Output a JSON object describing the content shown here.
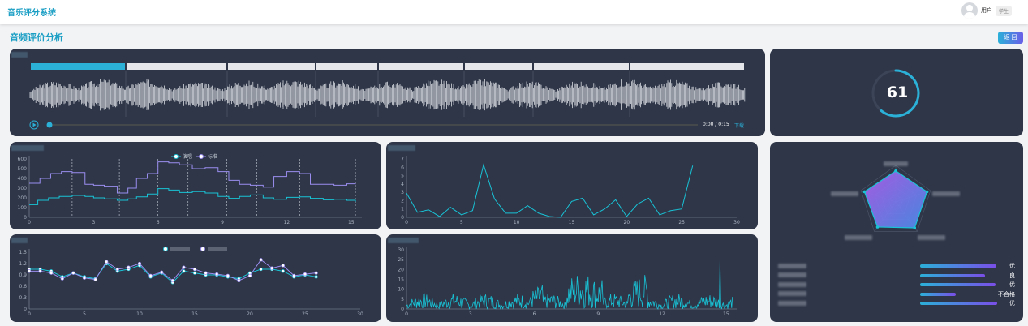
{
  "app": {
    "title": "音乐评分系统"
  },
  "user": {
    "name": "用户",
    "role": "学生"
  },
  "page": {
    "title": "音频评价分析",
    "back_label": "返 回"
  },
  "player": {
    "time": "0:00 / 0:15",
    "download_label": "下载",
    "segments": 8,
    "active_segment": 0
  },
  "score": {
    "value": "61",
    "fraction": 0.61,
    "color": "#2bb0d8"
  },
  "ratings": [
    {
      "label": "优",
      "fraction": 0.96
    },
    {
      "label": "良",
      "fraction": 0.82
    },
    {
      "label": "优",
      "fraction": 0.95
    },
    {
      "label": "不合格",
      "fraction": 0.45
    },
    {
      "label": "优",
      "fraction": 0.97
    }
  ],
  "colors": {
    "card": "#2e3648",
    "cyan": "#19c3d6",
    "purple": "#9b8ef0",
    "accent": "#2bb0d8"
  },
  "chart_data": [
    {
      "type": "line",
      "legend": [
        "演唱",
        "标准"
      ],
      "ylim": [
        0,
        600
      ],
      "yticks": [
        0,
        100,
        200,
        300,
        400,
        500,
        600
      ],
      "xlim": [
        0,
        15.5
      ],
      "xticks": [
        0,
        3,
        6,
        9,
        12,
        15
      ],
      "series": [
        {
          "name": "演唱",
          "x": [
            0,
            0.4,
            0.9,
            1.4,
            2.0,
            2.6,
            3.0,
            3.5,
            4.1,
            4.6,
            5.0,
            5.5,
            6.0,
            6.5,
            7.0,
            7.6,
            8.2,
            8.8,
            9.3,
            9.8,
            10.3,
            10.9,
            11.4,
            12.0,
            12.6,
            13.1,
            13.7,
            14.2,
            14.8,
            15.2
          ],
          "values": [
            130,
            175,
            200,
            215,
            225,
            215,
            200,
            190,
            175,
            190,
            210,
            240,
            295,
            280,
            255,
            265,
            250,
            215,
            195,
            215,
            230,
            200,
            185,
            205,
            210,
            195,
            180,
            185,
            175,
            160
          ]
        },
        {
          "name": "标准",
          "x": [
            0,
            0.5,
            1.0,
            1.5,
            2.0,
            2.6,
            3.0,
            3.5,
            4.1,
            4.6,
            5.0,
            5.5,
            6.0,
            6.5,
            7.0,
            7.6,
            8.2,
            8.8,
            9.3,
            9.8,
            10.3,
            10.9,
            11.4,
            12.0,
            12.6,
            13.1,
            13.7,
            14.2,
            14.8,
            15.2
          ],
          "values": [
            350,
            400,
            450,
            470,
            460,
            340,
            330,
            320,
            250,
            300,
            400,
            450,
            570,
            560,
            540,
            500,
            510,
            470,
            380,
            340,
            330,
            310,
            420,
            470,
            450,
            340,
            340,
            330,
            345,
            350
          ]
        }
      ],
      "dashed_x": [
        2.0,
        4.2,
        6.0,
        7.4,
        9.2,
        10.6,
        12.6,
        15.2
      ]
    },
    {
      "type": "line",
      "ylim": [
        0,
        7
      ],
      "yticks": [
        0,
        1,
        2,
        3,
        4,
        5,
        6,
        7
      ],
      "xlim": [
        0,
        30
      ],
      "xticks": [
        0,
        5,
        10,
        15,
        20,
        25,
        30
      ],
      "series": [
        {
          "x": [
            0,
            1,
            2,
            3,
            4,
            5,
            6,
            7,
            8,
            9,
            10,
            11,
            12,
            13,
            14,
            15,
            16,
            17,
            18,
            19,
            20,
            21,
            22,
            23,
            24,
            25,
            26
          ],
          "values": [
            2.9,
            0.6,
            0.9,
            0.1,
            1.2,
            0.3,
            0.8,
            6.3,
            2.2,
            0.5,
            0.5,
            1.4,
            0.5,
            0.1,
            0.0,
            1.9,
            2.3,
            0.3,
            1.0,
            2.1,
            0.1,
            1.6,
            2.3,
            0.3,
            0.8,
            1.0,
            6.2
          ]
        }
      ]
    },
    {
      "type": "line",
      "ylim": [
        0,
        1.5
      ],
      "yticks": [
        0,
        0.3,
        0.6,
        0.9,
        1.2,
        1.5
      ],
      "xlim": [
        0,
        30
      ],
      "xticks": [
        0,
        5,
        10,
        15,
        20,
        25,
        30
      ],
      "series": [
        {
          "x": [
            0,
            1,
            2,
            3,
            4,
            5,
            6,
            7,
            8,
            9,
            10,
            11,
            12,
            13,
            14,
            15,
            16,
            17,
            18,
            19,
            20,
            21,
            22,
            23,
            24,
            25,
            26
          ],
          "values": [
            1.05,
            1.05,
            1.0,
            0.85,
            0.95,
            0.85,
            0.8,
            1.2,
            1.0,
            1.05,
            1.15,
            0.85,
            0.95,
            0.7,
            1.0,
            0.95,
            0.9,
            0.9,
            0.85,
            0.8,
            0.95,
            1.05,
            1.05,
            1.0,
            0.85,
            0.9,
            0.85
          ]
        },
        {
          "x": [
            0,
            1,
            2,
            3,
            4,
            5,
            6,
            7,
            8,
            9,
            10,
            11,
            12,
            13,
            14,
            15,
            16,
            17,
            18,
            19,
            20,
            21,
            22,
            23,
            24,
            25,
            26
          ],
          "values": [
            1.0,
            1.0,
            0.95,
            0.8,
            0.95,
            0.82,
            0.78,
            1.25,
            1.05,
            1.1,
            1.2,
            0.88,
            0.97,
            0.75,
            1.1,
            1.05,
            0.95,
            0.92,
            0.88,
            0.75,
            0.88,
            1.3,
            1.08,
            1.15,
            0.88,
            0.92,
            0.95
          ]
        }
      ]
    },
    {
      "type": "line",
      "ylim": [
        0,
        30
      ],
      "yticks": [
        0,
        5,
        10,
        15,
        20,
        25,
        30
      ],
      "xlim": [
        0,
        15.5
      ],
      "xticks": [
        0,
        3,
        6,
        9,
        12,
        15
      ]
    },
    {
      "type": "radar",
      "axes": 5,
      "max": 1,
      "series": [
        {
          "values": [
            0.85,
            0.9,
            0.88,
            0.85,
            0.9
          ]
        }
      ]
    }
  ]
}
